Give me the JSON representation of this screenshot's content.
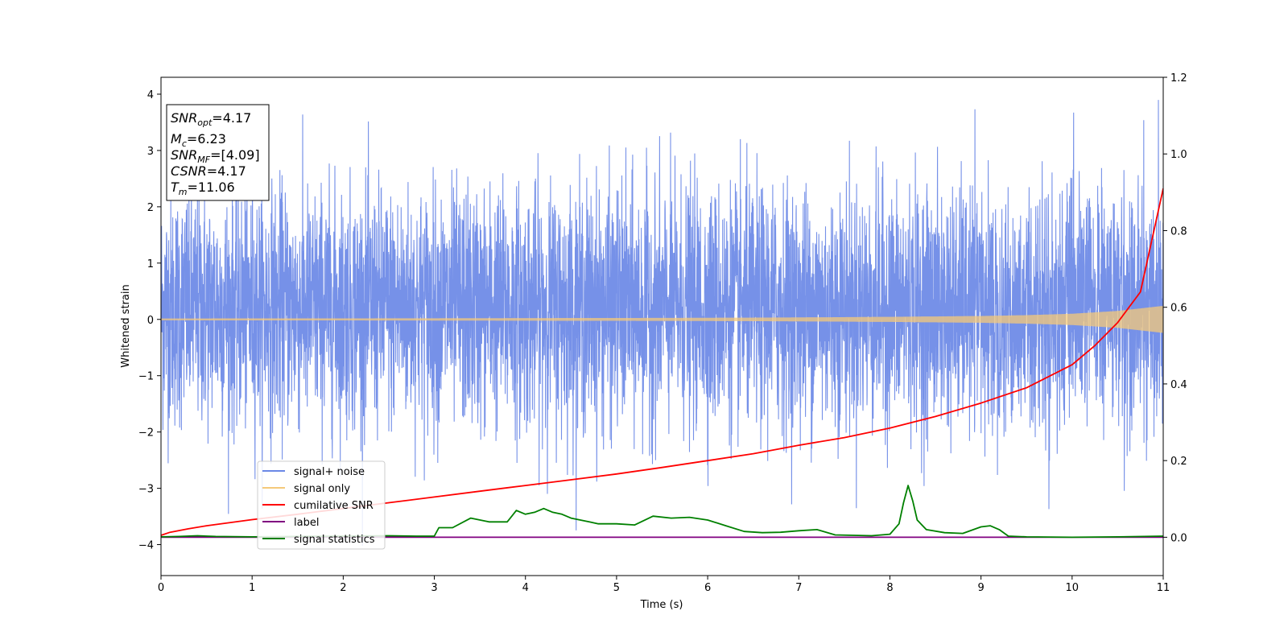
{
  "chart_data": {
    "type": "line",
    "xlabel": "Time (s)",
    "ylabel": "Whitened strain",
    "xlim": [
      0,
      11
    ],
    "ylim_left": [
      -4.55,
      4.3
    ],
    "ylim_right": [
      -0.1,
      1.2
    ],
    "x_ticks": [
      "0",
      "1",
      "2",
      "3",
      "4",
      "5",
      "6",
      "7",
      "8",
      "9",
      "10",
      "11"
    ],
    "y_left_ticks": [
      "4",
      "3",
      "2",
      "1",
      "0",
      "−1",
      "−2",
      "−3",
      "−4"
    ],
    "y_left_tick_values": [
      4,
      3,
      2,
      1,
      0,
      -1,
      -2,
      -3,
      -4
    ],
    "y_right_ticks": [
      "1.2",
      "1.0",
      "0.8",
      "0.6",
      "0.4",
      "0.2",
      "0.0"
    ],
    "y_right_tick_values": [
      1.2,
      1.0,
      0.8,
      0.6,
      0.4,
      0.2,
      0.0
    ],
    "grid": false,
    "legend_position": "lower-left",
    "info_box": {
      "lines": [
        {
          "main": "SNR",
          "sub": "opt",
          "rest": "=4.17"
        },
        {
          "main": "M",
          "sub": "c",
          "rest": "=6.23"
        },
        {
          "main": "SNR",
          "sub": "MF",
          "rest": "=[4.09]"
        },
        {
          "main": "CSNR",
          "sub": "",
          "rest": "=4.17"
        },
        {
          "main": "T",
          "sub": "m",
          "rest": "=11.06"
        }
      ]
    },
    "series": [
      {
        "name": "signal+ noise",
        "axis": "left",
        "color": "#6a88e6",
        "style": "noise",
        "mean": 0.2,
        "std": 1.05,
        "min_observed": -4.17,
        "max_observed": 3.9
      },
      {
        "name": "signal only",
        "axis": "left",
        "color": "#f5c97a",
        "style": "chirp",
        "envelope": {
          "x": [
            0,
            2,
            4,
            6,
            7,
            8,
            9,
            9.5,
            10,
            10.5,
            11
          ],
          "y": [
            0.015,
            0.018,
            0.022,
            0.028,
            0.035,
            0.045,
            0.06,
            0.075,
            0.1,
            0.15,
            0.24
          ]
        }
      },
      {
        "name": "cumilative SNR",
        "axis": "right",
        "color": "#ff0000",
        "x": [
          0,
          0.1,
          0.3,
          0.5,
          1,
          1.5,
          2,
          2.5,
          3,
          3.5,
          4,
          4.5,
          5,
          5.5,
          6,
          6.5,
          7,
          7.5,
          8,
          8.5,
          9,
          9.5,
          10,
          10.25,
          10.5,
          10.75,
          11
        ],
        "y": [
          0.005,
          0.013,
          0.022,
          0.03,
          0.046,
          0.06,
          0.075,
          0.09,
          0.105,
          0.12,
          0.135,
          0.15,
          0.165,
          0.182,
          0.2,
          0.218,
          0.24,
          0.26,
          0.285,
          0.315,
          0.35,
          0.39,
          0.45,
          0.5,
          0.56,
          0.64,
          0.91
        ]
      },
      {
        "name": "label",
        "axis": "right",
        "color": "#800080",
        "x": [
          0,
          11
        ],
        "y": [
          0,
          0
        ]
      },
      {
        "name": "signal statistics",
        "axis": "right",
        "color": "#008000",
        "x": [
          0,
          0.2,
          0.4,
          0.6,
          1,
          1.5,
          2,
          2.5,
          2.8,
          3,
          3.05,
          3.2,
          3.4,
          3.6,
          3.8,
          3.9,
          4,
          4.1,
          4.2,
          4.3,
          4.4,
          4.5,
          4.7,
          4.8,
          5,
          5.2,
          5.4,
          5.6,
          5.8,
          6,
          6.2,
          6.4,
          6.6,
          6.8,
          7,
          7.2,
          7.4,
          7.6,
          7.8,
          8,
          8.1,
          8.15,
          8.2,
          8.25,
          8.3,
          8.4,
          8.6,
          8.8,
          9,
          9.1,
          9.2,
          9.3,
          9.5,
          10,
          10.5,
          11
        ],
        "y": [
          0.001,
          0.002,
          0.004,
          0.002,
          0.001,
          0.002,
          0.003,
          0.004,
          0.003,
          0.003,
          0.025,
          0.025,
          0.05,
          0.04,
          0.04,
          0.07,
          0.06,
          0.065,
          0.075,
          0.065,
          0.06,
          0.05,
          0.04,
          0.035,
          0.035,
          0.032,
          0.055,
          0.05,
          0.052,
          0.045,
          0.03,
          0.015,
          0.012,
          0.013,
          0.017,
          0.02,
          0.006,
          0.005,
          0.004,
          0.008,
          0.035,
          0.09,
          0.135,
          0.095,
          0.045,
          0.02,
          0.012,
          0.01,
          0.027,
          0.03,
          0.02,
          0.003,
          0.001,
          0.0,
          0.001,
          0.003
        ]
      }
    ]
  }
}
